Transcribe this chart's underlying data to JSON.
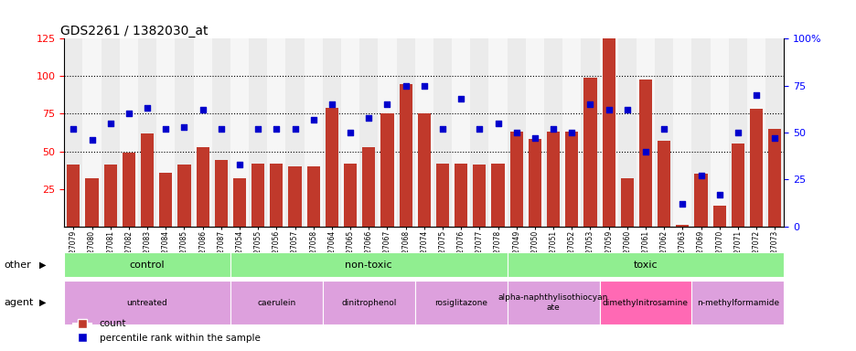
{
  "title": "GDS2261 / 1382030_at",
  "samples": [
    "GSM127079",
    "GSM127080",
    "GSM127081",
    "GSM127082",
    "GSM127083",
    "GSM127084",
    "GSM127085",
    "GSM127086",
    "GSM127087",
    "GSM127054",
    "GSM127055",
    "GSM127056",
    "GSM127057",
    "GSM127058",
    "GSM127064",
    "GSM127065",
    "GSM127066",
    "GSM127067",
    "GSM127068",
    "GSM127074",
    "GSM127075",
    "GSM127076",
    "GSM127077",
    "GSM127078",
    "GSM127049",
    "GSM127050",
    "GSM127051",
    "GSM127052",
    "GSM127053",
    "GSM127059",
    "GSM127060",
    "GSM127061",
    "GSM127062",
    "GSM127063",
    "GSM127069",
    "GSM127070",
    "GSM127071",
    "GSM127072",
    "GSM127073"
  ],
  "counts": [
    41,
    32,
    41,
    49,
    62,
    36,
    41,
    53,
    44,
    32,
    42,
    42,
    40,
    40,
    79,
    42,
    53,
    75,
    95,
    75,
    42,
    42,
    41,
    42,
    63,
    58,
    63,
    63,
    99,
    125,
    32,
    98,
    57,
    1,
    35,
    14,
    55,
    78,
    65
  ],
  "percentiles": [
    52,
    46,
    55,
    60,
    63,
    52,
    53,
    62,
    52,
    33,
    52,
    52,
    52,
    57,
    65,
    50,
    58,
    65,
    75,
    75,
    52,
    68,
    52,
    55,
    50,
    47,
    52,
    50,
    65,
    62,
    62,
    40,
    52,
    12,
    27,
    17,
    50,
    70,
    47
  ],
  "bar_color": "#C0392B",
  "dot_color": "#0000CC",
  "grid_values": [
    50,
    75,
    100
  ],
  "left_ticks": [
    25,
    50,
    75,
    100,
    125
  ],
  "right_ticks": [
    0,
    25,
    50,
    75,
    100
  ],
  "right_tick_labels": [
    "0",
    "25",
    "50",
    "75",
    "100%"
  ],
  "other_groups": [
    {
      "label": "control",
      "start": 0,
      "end": 9,
      "color": "#90EE90"
    },
    {
      "label": "non-toxic",
      "start": 9,
      "end": 24,
      "color": "#90EE90"
    },
    {
      "label": "toxic",
      "start": 24,
      "end": 39,
      "color": "#90EE90"
    }
  ],
  "agent_groups": [
    {
      "label": "untreated",
      "start": 0,
      "end": 9,
      "color": "#DDA0DD"
    },
    {
      "label": "caerulein",
      "start": 9,
      "end": 14,
      "color": "#DDA0DD"
    },
    {
      "label": "dinitrophenol",
      "start": 14,
      "end": 19,
      "color": "#DDA0DD"
    },
    {
      "label": "rosiglitazone",
      "start": 19,
      "end": 24,
      "color": "#DDA0DD"
    },
    {
      "label": "alpha-naphthylisothiocyan\nate",
      "start": 24,
      "end": 29,
      "color": "#DDA0DD"
    },
    {
      "label": "dimethylnitrosamine",
      "start": 29,
      "end": 34,
      "color": "#FF69B4"
    },
    {
      "label": "n-methylformamide",
      "start": 34,
      "end": 39,
      "color": "#DDA0DD"
    }
  ],
  "legend_items": [
    {
      "label": "count",
      "color": "#C0392B"
    },
    {
      "label": "percentile rank within the sample",
      "color": "#0000CC"
    }
  ]
}
